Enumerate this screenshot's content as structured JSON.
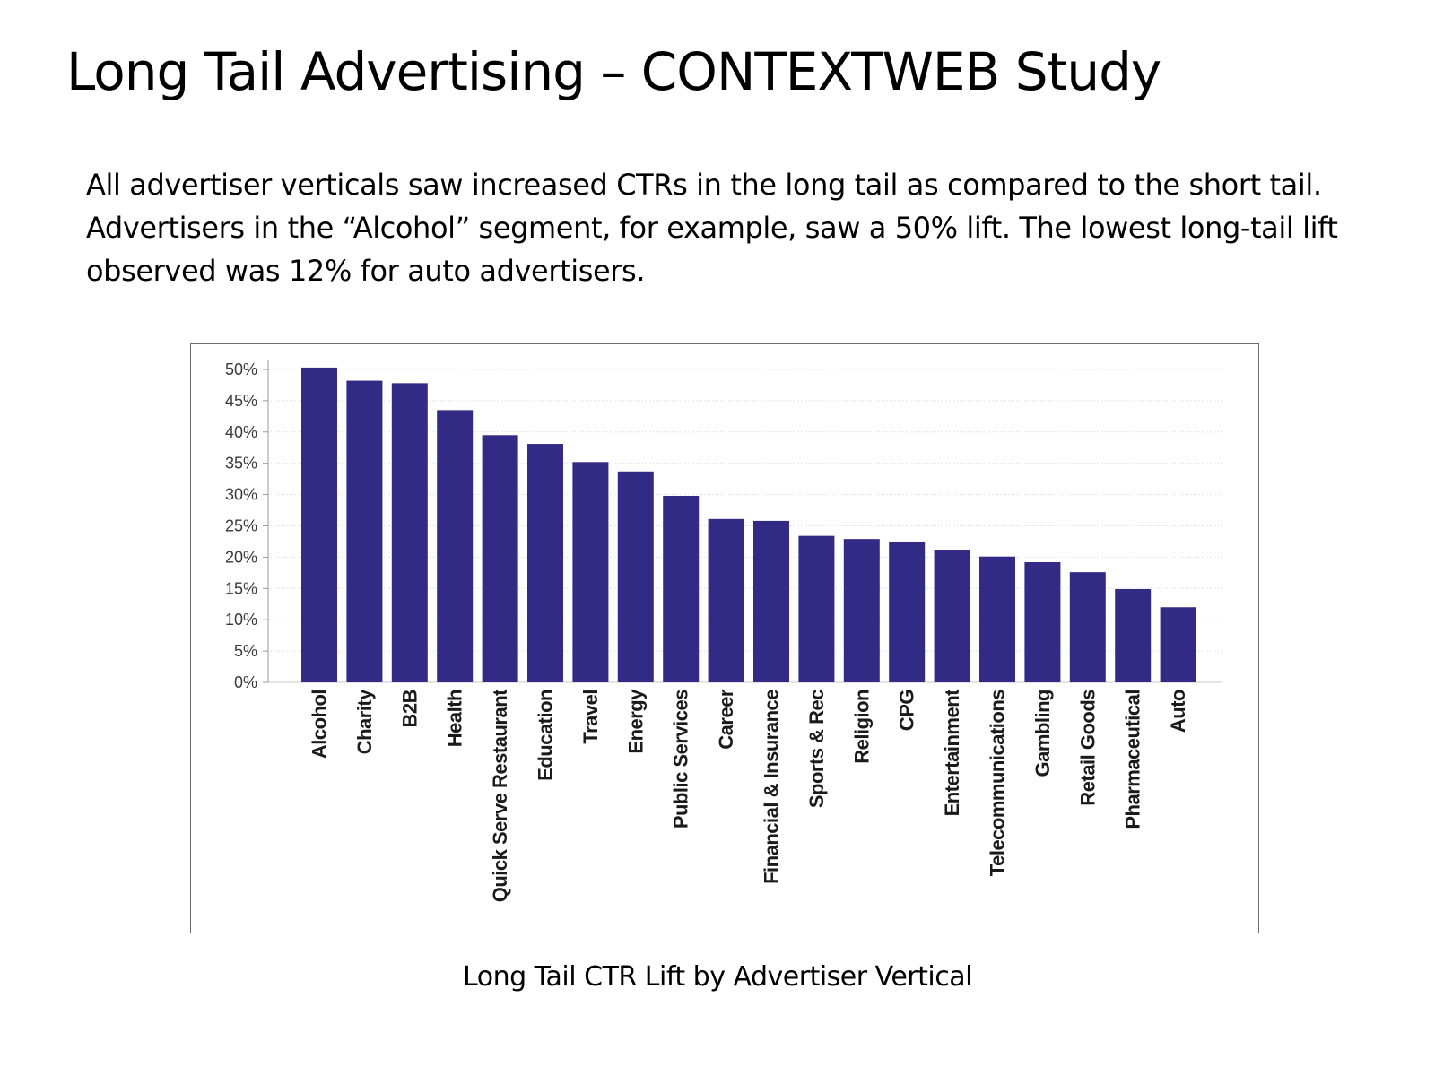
{
  "slide": {
    "title": "Long Tail Advertising – CONTEXTWEB Study",
    "body": "All advertiser verticals saw increased CTRs in the long tail as compared to the short tail. Advertisers in the “Alcohol” segment, for example, saw a 50% lift. The lowest long-tail lift observed was 12% for auto advertisers.",
    "caption": "Long Tail CTR Lift  by Advertiser Vertical"
  },
  "chart_data": {
    "type": "bar",
    "title": "",
    "xlabel": "",
    "ylabel": "",
    "ylim": [
      0,
      50
    ],
    "yticks": [
      "0%",
      "5%",
      "10%",
      "15%",
      "20%",
      "25%",
      "30%",
      "35%",
      "40%",
      "45%",
      "50%"
    ],
    "grid": true,
    "legend": "none",
    "bar_color": "#322a85",
    "categories": [
      "Alcohol",
      "Charity",
      "B2B",
      "Health",
      "Quick Serve Restaurant",
      "Education",
      "Travel",
      "Energy",
      "Public Services",
      "Career",
      "Financial & Insurance",
      "Sports & Rec",
      "Religion",
      "CPG",
      "Entertainment",
      "Telecommunications",
      "Gambling",
      "Retail Goods",
      "Pharmaceutical",
      "Auto"
    ],
    "values": [
      50.3,
      48.2,
      47.8,
      43.5,
      39.5,
      38.1,
      35.2,
      33.7,
      29.8,
      26.1,
      25.8,
      23.4,
      22.9,
      22.5,
      21.2,
      20.1,
      19.2,
      17.6,
      14.9,
      12.0
    ]
  }
}
